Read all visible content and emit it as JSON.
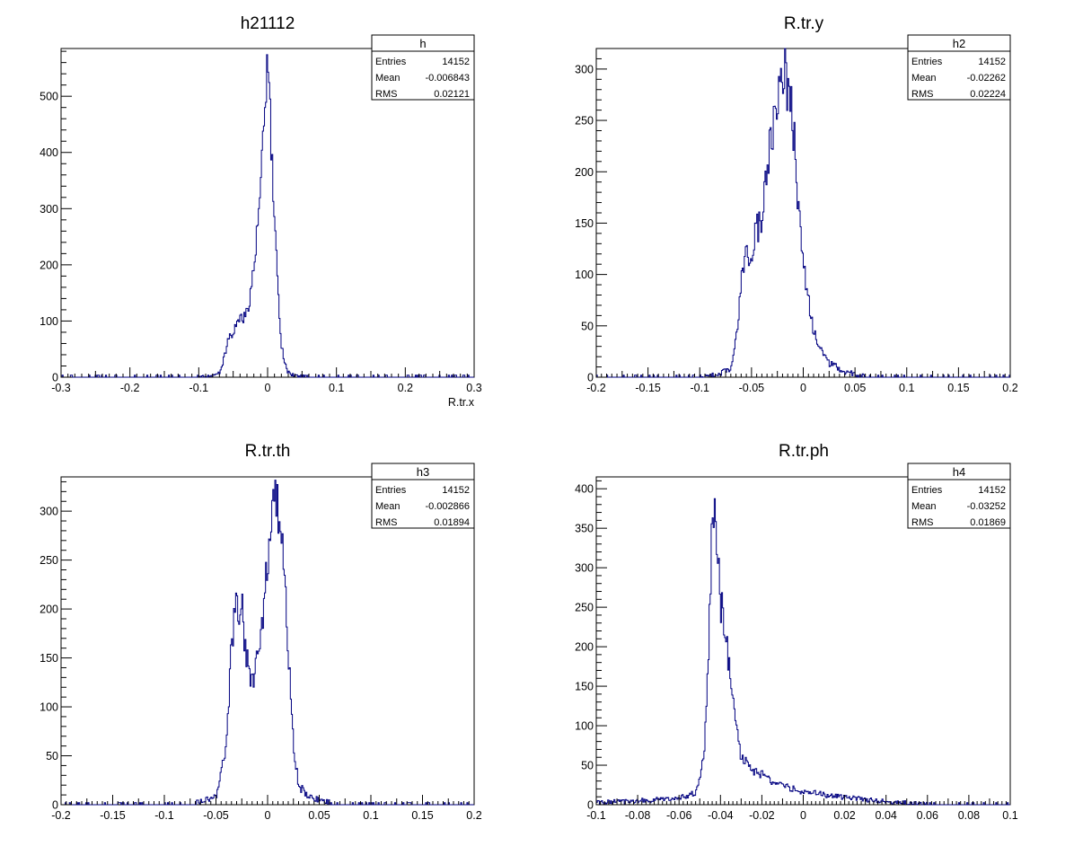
{
  "chart_data": [
    {
      "type": "histogram",
      "title": "h21112",
      "xlabel": "R.tr.x",
      "xlim": [
        -0.3,
        0.3
      ],
      "ylim": [
        0,
        585
      ],
      "xticks": [
        "-0.3",
        "-0.2",
        "-0.1",
        "0",
        "0.1",
        "0.2",
        "0.3"
      ],
      "yticks": [
        "0",
        "100",
        "200",
        "300",
        "400",
        "500"
      ],
      "color": "#000080",
      "stats": {
        "name": "h",
        "entries": "14152",
        "mean": "-0.006843",
        "rms": "0.02121"
      },
      "x": [
        -0.1,
        -0.08,
        -0.07,
        -0.065,
        -0.06,
        -0.055,
        -0.05,
        -0.045,
        -0.04,
        -0.035,
        -0.03,
        -0.025,
        -0.02,
        -0.015,
        -0.01,
        -0.006,
        -0.003,
        0,
        0.003,
        0.006,
        0.01,
        0.015,
        0.02,
        0.025,
        0.03,
        0.04,
        0.06
      ],
      "values": [
        0,
        2,
        8,
        25,
        55,
        75,
        80,
        95,
        110,
        105,
        115,
        150,
        190,
        260,
        330,
        420,
        520,
        555,
        500,
        380,
        280,
        150,
        60,
        25,
        8,
        3,
        0
      ]
    },
    {
      "type": "histogram",
      "title": "R.tr.y",
      "xlabel": "",
      "xlim": [
        -0.2,
        0.2
      ],
      "ylim": [
        0,
        320
      ],
      "xticks": [
        "-0.2",
        "-0.15",
        "-0.1",
        "-0.05",
        "0",
        "0.05",
        "0.1",
        "0.15",
        "0.2"
      ],
      "yticks": [
        "0",
        "50",
        "100",
        "150",
        "200",
        "250",
        "300"
      ],
      "color": "#000080",
      "stats": {
        "name": "h2",
        "entries": "14152",
        "mean": "-0.02262",
        "rms": "0.02224"
      },
      "x": [
        -0.1,
        -0.08,
        -0.07,
        -0.065,
        -0.06,
        -0.055,
        -0.05,
        -0.045,
        -0.04,
        -0.035,
        -0.03,
        -0.025,
        -0.02,
        -0.015,
        -0.01,
        -0.005,
        0,
        0.005,
        0.01,
        0.015,
        0.02,
        0.025,
        0.03,
        0.04,
        0.05,
        0.06
      ],
      "values": [
        0,
        3,
        10,
        35,
        90,
        120,
        110,
        150,
        140,
        210,
        240,
        275,
        300,
        280,
        250,
        180,
        110,
        75,
        45,
        30,
        22,
        15,
        12,
        5,
        3,
        0
      ]
    },
    {
      "type": "histogram",
      "title": "R.tr.th",
      "xlabel": "",
      "xlim": [
        -0.2,
        0.2
      ],
      "ylim": [
        0,
        335
      ],
      "xticks": [
        "-0.2",
        "-0.15",
        "-0.1",
        "-0.05",
        "0",
        "0.05",
        "0.1",
        "0.15",
        "0.2"
      ],
      "yticks": [
        "0",
        "50",
        "100",
        "150",
        "200",
        "250",
        "300"
      ],
      "color": "#000080",
      "stats": {
        "name": "h3",
        "entries": "14152",
        "mean": "-0.002866",
        "rms": "0.01894"
      },
      "x": [
        -0.07,
        -0.05,
        -0.04,
        -0.035,
        -0.03,
        -0.025,
        -0.02,
        -0.015,
        -0.01,
        -0.005,
        0,
        0.005,
        0.01,
        0.015,
        0.02,
        0.025,
        0.03,
        0.04,
        0.06
      ],
      "values": [
        2,
        8,
        60,
        160,
        210,
        200,
        150,
        130,
        150,
        175,
        250,
        290,
        315,
        260,
        160,
        60,
        20,
        8,
        2
      ]
    },
    {
      "type": "histogram",
      "title": "R.tr.ph",
      "xlabel": "",
      "xlim": [
        -0.1,
        0.1
      ],
      "ylim": [
        0,
        415
      ],
      "xticks": [
        "-0.1",
        "-0.08",
        "-0.06",
        "-0.04",
        "-0.02",
        "0",
        "0.02",
        "0.04",
        "0.06",
        "0.08",
        "0.1"
      ],
      "yticks": [
        "0",
        "50",
        "100",
        "150",
        "200",
        "250",
        "300",
        "350",
        "400"
      ],
      "color": "#000080",
      "stats": {
        "name": "h4",
        "entries": "14152",
        "mean": "-0.03252",
        "rms": "0.01869"
      },
      "x": [
        -0.1,
        -0.06,
        -0.052,
        -0.048,
        -0.046,
        -0.044,
        -0.043,
        -0.042,
        -0.04,
        -0.038,
        -0.035,
        -0.033,
        -0.03,
        -0.025,
        -0.02,
        -0.015,
        -0.01,
        -0.005,
        0,
        0.01,
        0.02,
        0.03,
        0.04,
        0.05,
        0.06
      ],
      "values": [
        2,
        8,
        15,
        60,
        180,
        340,
        400,
        360,
        260,
        220,
        170,
        110,
        60,
        45,
        38,
        30,
        25,
        20,
        17,
        12,
        10,
        6,
        4,
        2,
        0
      ]
    }
  ]
}
